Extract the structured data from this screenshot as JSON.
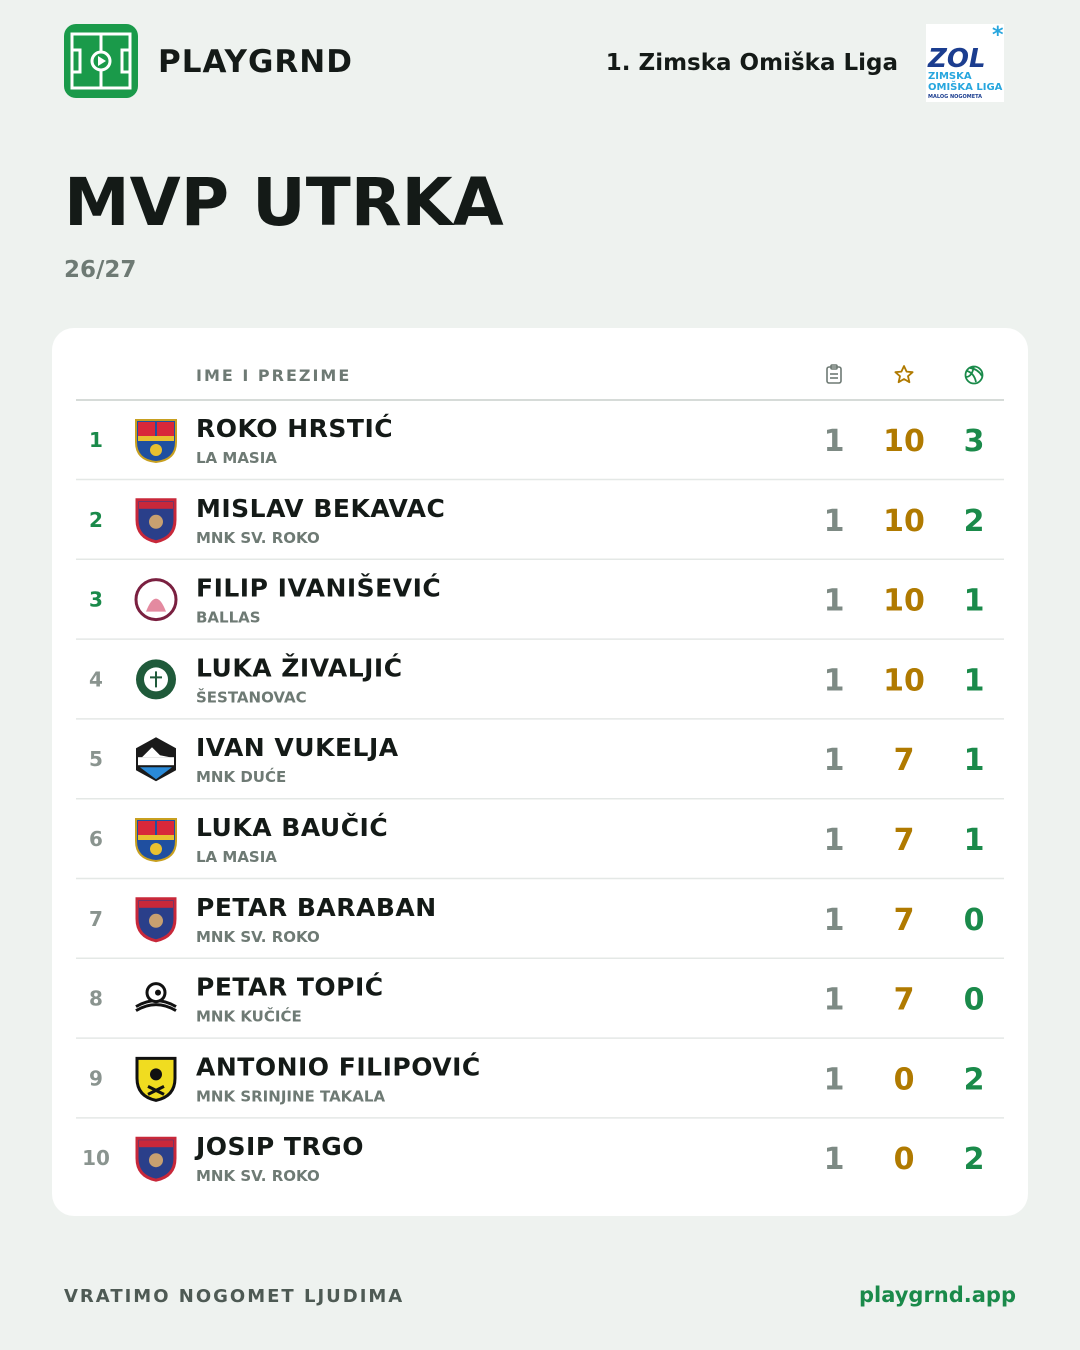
{
  "header": {
    "brand": "PLAYGRND",
    "league": "1. Zimska Omiška Liga",
    "league_logo": {
      "abbr": "ZOL",
      "line1": "ZIMSKA",
      "line2": "OMIŠKA LIGA",
      "line3": "MALOG NOGOMETA"
    }
  },
  "title": "MVP UTRKA",
  "season": "26/27",
  "table": {
    "columns": {
      "name": "IME I PREZIME"
    },
    "rows": [
      {
        "rank": "1",
        "name": "ROKO HRSTIĆ",
        "team": "LA MASIA",
        "apps": "1",
        "rating": "10",
        "goals": "3"
      },
      {
        "rank": "2",
        "name": "MISLAV BEKAVAC",
        "team": "MNK SV. ROKO",
        "apps": "1",
        "rating": "10",
        "goals": "2"
      },
      {
        "rank": "3",
        "name": "FILIP IVANIŠEVIĆ",
        "team": "BALLAS",
        "apps": "1",
        "rating": "10",
        "goals": "1"
      },
      {
        "rank": "4",
        "name": "LUKA ŽIVALJIĆ",
        "team": "ŠESTANOVAC",
        "apps": "1",
        "rating": "10",
        "goals": "1"
      },
      {
        "rank": "5",
        "name": "IVAN VUKELJA",
        "team": "MNK DUĆE",
        "apps": "1",
        "rating": "7",
        "goals": "1"
      },
      {
        "rank": "6",
        "name": "LUKA BAUČIĆ",
        "team": "LA MASIA",
        "apps": "1",
        "rating": "7",
        "goals": "1"
      },
      {
        "rank": "7",
        "name": "PETAR BARABAN",
        "team": "MNK SV. ROKO",
        "apps": "1",
        "rating": "7",
        "goals": "0"
      },
      {
        "rank": "8",
        "name": "PETAR TOPIĆ",
        "team": "MNK KUČIĆE",
        "apps": "1",
        "rating": "7",
        "goals": "0"
      },
      {
        "rank": "9",
        "name": "ANTONIO FILIPOVIĆ",
        "team": "MNK SRINJINE TAKALA",
        "apps": "1",
        "rating": "0",
        "goals": "2"
      },
      {
        "rank": "10",
        "name": "JOSIP TRGO",
        "team": "MNK SV. ROKO",
        "apps": "1",
        "rating": "0",
        "goals": "2"
      }
    ]
  },
  "footer": {
    "slogan": "VRATIMO NOGOMET LJUDIMA",
    "url": "playgrnd.app"
  }
}
